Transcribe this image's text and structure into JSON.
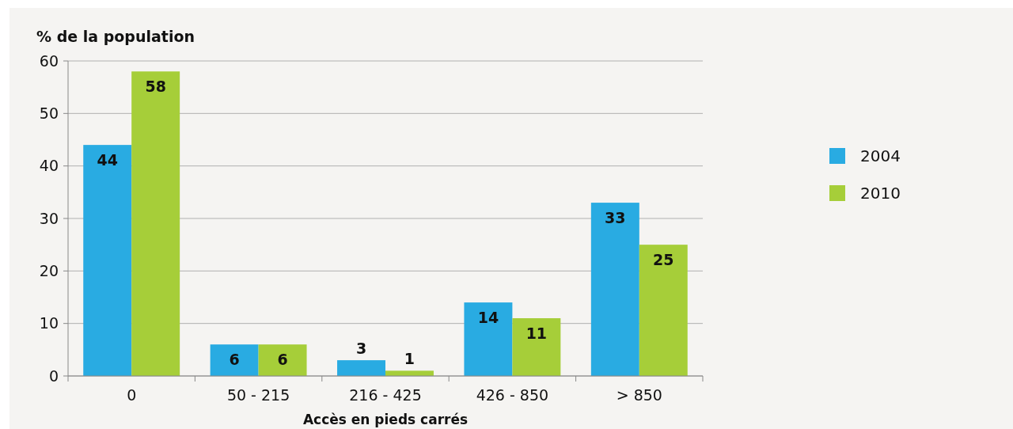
{
  "chart_data": {
    "type": "bar",
    "ylabel": "% de la population",
    "xlabel": "Accès en pieds carrés",
    "categories": [
      "0",
      "50 - 215",
      "216 - 425",
      "426 - 850",
      "> 850"
    ],
    "series": [
      {
        "name": "2004",
        "color": "#29abe2",
        "values": [
          44,
          6,
          3,
          14,
          33
        ]
      },
      {
        "name": "2010",
        "color": "#a6ce39",
        "values": [
          58,
          6,
          1,
          11,
          25
        ]
      }
    ],
    "ylim": [
      0,
      60
    ],
    "yticks": [
      0,
      10,
      20,
      30,
      40,
      50,
      60
    ],
    "grid": "y",
    "legend": "right",
    "data_labels": true
  }
}
